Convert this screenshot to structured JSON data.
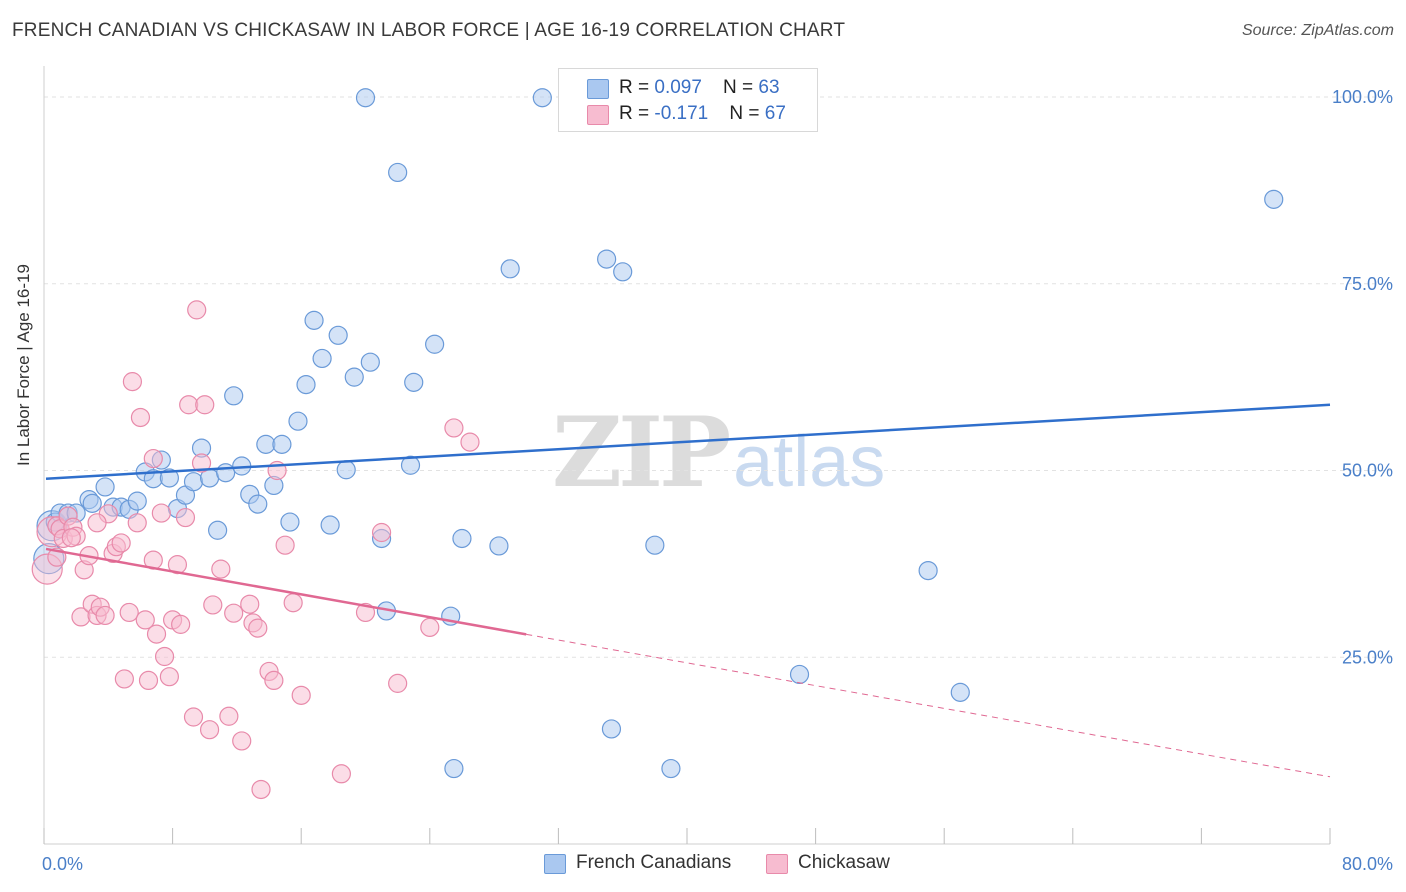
{
  "header": {
    "title": "FRENCH CANADIAN VS CHICKASAW IN LABOR FORCE | AGE 16-19 CORRELATION CHART",
    "source": "Source: ZipAtlas.com"
  },
  "watermark": {
    "zip": "ZIP",
    "atlas": "atlas"
  },
  "legend": {
    "french": {
      "r_label": "R = ",
      "r_value": "0.097",
      "n_label": "N = ",
      "n_value": "63"
    },
    "chickasaw": {
      "r_label": "R = ",
      "r_value": "-0.171",
      "n_label": "N = ",
      "n_value": "67"
    }
  },
  "colors": {
    "french_fill": "#aac8f0",
    "french_stroke": "#6a9ad8",
    "french_line": "#2f6fcc",
    "chickasaw_fill": "#f7bcd0",
    "chickasaw_stroke": "#e88aaa",
    "chickasaw_line": "#e06892",
    "grid": "#e2e2e2",
    "tick_label": "#4a7fc8"
  },
  "chart_data": {
    "type": "scatter",
    "title": "FRENCH CANADIAN VS CHICKASAW IN LABOR FORCE | AGE 16-19 CORRELATION CHART",
    "ylabel": "In Labor Force | Age 16-19",
    "xlabel": "",
    "xlim": [
      0,
      80
    ],
    "ylim": [
      0,
      100
    ],
    "x_tick_labels": [
      "0.0%",
      "80.0%"
    ],
    "y_ticks": [
      25,
      50,
      75,
      100
    ],
    "y_tick_labels": [
      "25.0%",
      "50.0%",
      "75.0%",
      "100.0%"
    ],
    "grid": true,
    "legend_placement": "top-center",
    "series": [
      {
        "name": "French Canadians",
        "r": 0.097,
        "n": 63,
        "trend": {
          "x": [
            0,
            80
          ],
          "y": [
            48.9,
            58.8
          ],
          "dashed_from": null
        },
        "points": [
          [
            0.3,
            38.2
          ],
          [
            0.5,
            42.6
          ],
          [
            0.7,
            43.1
          ],
          [
            1.0,
            44.3
          ],
          [
            1.5,
            44.3
          ],
          [
            2.0,
            44.3
          ],
          [
            2.8,
            46.1
          ],
          [
            3.0,
            45.6
          ],
          [
            3.8,
            47.8
          ],
          [
            4.3,
            45.1
          ],
          [
            4.8,
            45.1
          ],
          [
            5.3,
            44.8
          ],
          [
            5.8,
            45.9
          ],
          [
            6.3,
            49.8
          ],
          [
            6.8,
            48.9
          ],
          [
            7.3,
            51.4
          ],
          [
            7.8,
            49.0
          ],
          [
            8.3,
            44.9
          ],
          [
            8.8,
            46.7
          ],
          [
            9.3,
            48.5
          ],
          [
            9.8,
            53.0
          ],
          [
            10.3,
            49.0
          ],
          [
            10.8,
            42.0
          ],
          [
            11.3,
            49.7
          ],
          [
            11.8,
            60.0
          ],
          [
            12.3,
            50.6
          ],
          [
            12.8,
            46.8
          ],
          [
            13.3,
            45.5
          ],
          [
            13.8,
            53.5
          ],
          [
            14.8,
            53.5
          ],
          [
            14.3,
            48.0
          ],
          [
            15.3,
            43.1
          ],
          [
            15.8,
            56.6
          ],
          [
            16.3,
            61.5
          ],
          [
            16.8,
            70.1
          ],
          [
            17.3,
            65.0
          ],
          [
            17.8,
            42.7
          ],
          [
            18.3,
            68.1
          ],
          [
            18.8,
            50.1
          ],
          [
            19.3,
            62.5
          ],
          [
            20.0,
            99.9
          ],
          [
            20.3,
            64.5
          ],
          [
            21.0,
            40.9
          ],
          [
            21.3,
            31.2
          ],
          [
            22.0,
            89.9
          ],
          [
            22.8,
            50.7
          ],
          [
            23.0,
            61.8
          ],
          [
            24.3,
            66.9
          ],
          [
            25.3,
            30.5
          ],
          [
            25.5,
            10.1
          ],
          [
            26.0,
            40.9
          ],
          [
            28.3,
            39.9
          ],
          [
            29.0,
            77.0
          ],
          [
            31.0,
            99.9
          ],
          [
            35.0,
            78.3
          ],
          [
            35.3,
            15.4
          ],
          [
            36.0,
            76.6
          ],
          [
            38.0,
            40.0
          ],
          [
            39.0,
            10.1
          ],
          [
            47.0,
            22.7
          ],
          [
            55.0,
            36.6
          ],
          [
            57.0,
            20.3
          ],
          [
            76.5,
            86.3
          ]
        ]
      },
      {
        "name": "Chickasaw",
        "r": -0.171,
        "n": 67,
        "trend": {
          "x": [
            0,
            80
          ],
          "y": [
            39.5,
            9.0
          ],
          "dashed_from": 30
        },
        "points": [
          [
            0.2,
            36.8
          ],
          [
            0.5,
            41.8
          ],
          [
            0.8,
            42.6
          ],
          [
            1.0,
            42.2
          ],
          [
            1.2,
            40.9
          ],
          [
            1.5,
            43.9
          ],
          [
            1.8,
            42.4
          ],
          [
            2.0,
            41.2
          ],
          [
            2.3,
            30.4
          ],
          [
            2.5,
            36.7
          ],
          [
            2.8,
            38.6
          ],
          [
            3.0,
            32.1
          ],
          [
            3.3,
            30.6
          ],
          [
            3.5,
            31.7
          ],
          [
            3.8,
            30.6
          ],
          [
            4.0,
            44.2
          ],
          [
            4.3,
            38.9
          ],
          [
            4.5,
            39.8
          ],
          [
            4.8,
            40.3
          ],
          [
            5.0,
            22.1
          ],
          [
            5.3,
            31.0
          ],
          [
            5.5,
            61.9
          ],
          [
            5.8,
            43.0
          ],
          [
            6.0,
            57.1
          ],
          [
            6.3,
            30.0
          ],
          [
            6.5,
            21.9
          ],
          [
            6.8,
            51.6
          ],
          [
            7.0,
            28.1
          ],
          [
            7.3,
            44.3
          ],
          [
            7.5,
            25.1
          ],
          [
            7.8,
            22.4
          ],
          [
            8.0,
            30.0
          ],
          [
            8.3,
            37.4
          ],
          [
            8.5,
            29.4
          ],
          [
            8.8,
            43.7
          ],
          [
            9.0,
            58.8
          ],
          [
            9.3,
            17.0
          ],
          [
            9.5,
            71.5
          ],
          [
            9.8,
            51.0
          ],
          [
            10.0,
            58.8
          ],
          [
            10.3,
            15.3
          ],
          [
            10.5,
            32.0
          ],
          [
            11.0,
            36.8
          ],
          [
            11.5,
            17.1
          ],
          [
            11.8,
            30.9
          ],
          [
            12.3,
            13.8
          ],
          [
            12.8,
            32.1
          ],
          [
            13.0,
            29.6
          ],
          [
            13.3,
            28.9
          ],
          [
            13.5,
            7.3
          ],
          [
            14.0,
            23.1
          ],
          [
            14.3,
            21.9
          ],
          [
            14.5,
            50.0
          ],
          [
            15.0,
            40.0
          ],
          [
            15.5,
            32.3
          ],
          [
            16.0,
            19.9
          ],
          [
            18.5,
            9.4
          ],
          [
            21.0,
            41.7
          ],
          [
            22.0,
            21.5
          ],
          [
            25.5,
            55.7
          ],
          [
            26.5,
            53.8
          ],
          [
            24.0,
            29.0
          ],
          [
            20.0,
            31.0
          ],
          [
            6.8,
            38.0
          ],
          [
            3.3,
            43.0
          ],
          [
            1.7,
            41.0
          ],
          [
            0.8,
            38.4
          ]
        ]
      }
    ]
  }
}
